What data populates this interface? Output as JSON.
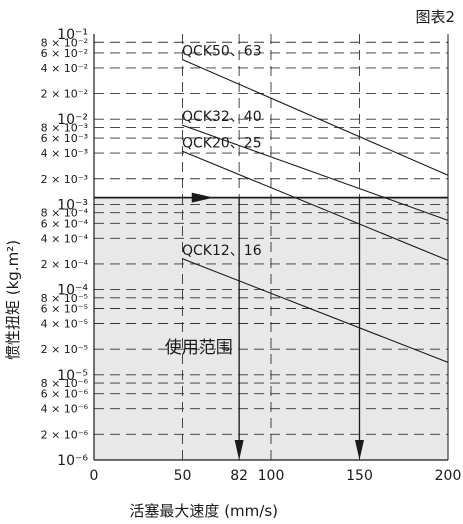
{
  "chart_data": {
    "type": "line",
    "title": "图表2",
    "xlabel": "活塞最大速度 (mm/s)",
    "ylabel": "惯性扭矩 (kg.m²)",
    "x_scale": "linear",
    "y_scale": "log",
    "xlim": [
      0,
      200
    ],
    "ylim": [
      1e-06,
      0.1
    ],
    "x_ticks": [
      0,
      50,
      82,
      100,
      150,
      200
    ],
    "y_ticks": [
      {
        "value": 1e-06,
        "label": "10⁻⁶"
      },
      {
        "value": 2e-06,
        "label": "2 × 10⁻⁶"
      },
      {
        "value": 4e-06,
        "label": "4 × 10⁻⁶"
      },
      {
        "value": 6e-06,
        "label": "6 × 10⁻⁶"
      },
      {
        "value": 8e-06,
        "label": "8 × 10⁻⁶"
      },
      {
        "value": 1e-05,
        "label": "10⁻⁵"
      },
      {
        "value": 2e-05,
        "label": "2 × 10⁻⁵"
      },
      {
        "value": 4e-05,
        "label": "4 × 10⁻⁵"
      },
      {
        "value": 6e-05,
        "label": "6 × 10⁻⁵"
      },
      {
        "value": 8e-05,
        "label": "8 × 10⁻⁵"
      },
      {
        "value": 0.0001,
        "label": "10⁻⁴"
      },
      {
        "value": 0.0002,
        "label": "2 × 10⁻⁴"
      },
      {
        "value": 0.0004,
        "label": "4 × 10⁻⁴"
      },
      {
        "value": 0.0006,
        "label": "6 × 10⁻⁴"
      },
      {
        "value": 0.0008,
        "label": "8 × 10⁻⁴"
      },
      {
        "value": 0.001,
        "label": "10⁻³"
      },
      {
        "value": 0.002,
        "label": "2 × 10⁻³"
      },
      {
        "value": 0.004,
        "label": "4 × 10⁻³"
      },
      {
        "value": 0.006,
        "label": "6 × 10⁻³"
      },
      {
        "value": 0.008,
        "label": "8 × 10⁻³"
      },
      {
        "value": 0.01,
        "label": "10⁻²"
      },
      {
        "value": 0.02,
        "label": "2 × 10⁻²"
      },
      {
        "value": 0.04,
        "label": "4 × 10⁻²"
      },
      {
        "value": 0.06,
        "label": "6 × 10⁻²"
      },
      {
        "value": 0.08,
        "label": "8 × 10⁻²"
      },
      {
        "value": 0.1,
        "label": "10⁻¹"
      }
    ],
    "grid": true,
    "series": [
      {
        "name": "QCK50、63",
        "x": [
          50,
          200
        ],
        "y": [
          0.05,
          0.0022
        ]
      },
      {
        "name": "QCK32、40",
        "x": [
          50,
          200
        ],
        "y": [
          0.0085,
          0.00065
        ]
      },
      {
        "name": "QCK20、25",
        "x": [
          50,
          200
        ],
        "y": [
          0.0042,
          0.00022
        ]
      },
      {
        "name": "QCK12、16",
        "x": [
          50,
          200
        ],
        "y": [
          0.00023,
          1.4e-05
        ]
      }
    ],
    "threshold": {
      "y": 0.0012,
      "x": [
        0,
        200
      ]
    },
    "verticals": [
      {
        "x": 82,
        "y_from": 0.0012
      },
      {
        "x": 150,
        "y_from": 0.0012
      }
    ],
    "region": {
      "label": "使用范围",
      "x": [
        0,
        200
      ],
      "y": [
        1e-06,
        0.0012
      ]
    },
    "colors": {
      "region": "#e8e8e8",
      "line": "#1a1a1a"
    }
  }
}
